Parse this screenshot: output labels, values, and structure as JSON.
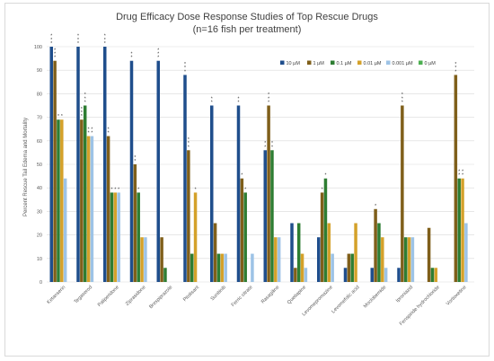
{
  "chart_data": {
    "type": "bar",
    "title": "Drug Efficacy Dose Response Studies of Top Rescue Drugs",
    "subtitle": "(n=16 fish per treatment)",
    "ylabel": "Percent Rescue Tail Edema and Mortality",
    "ylim": [
      0,
      100
    ],
    "yticks": [
      0,
      10,
      20,
      30,
      40,
      50,
      60,
      70,
      80,
      90,
      100
    ],
    "grid": true,
    "legend_position": "top-right",
    "categories": [
      "Ketanserin",
      "Tegaserod",
      "Paliperidone",
      "Ziprasidone",
      "Brexpiprazole",
      "Pitolisant",
      "Sunitinib",
      "Ferric citrate",
      "Rasagiline",
      "Quetiapine",
      "Levomepromazine",
      "Levomefolic acid",
      "Moclobemide",
      "Iproniazid",
      "Fenspiride hydrochloride",
      "Vortioxetine"
    ],
    "series": [
      {
        "name": "10 µM",
        "color": "#1f4e8c",
        "values": [
          100,
          100,
          100,
          94,
          94,
          88,
          75,
          75,
          56,
          25,
          19,
          6,
          6,
          6,
          0,
          0
        ]
      },
      {
        "name": "1 µM",
        "color": "#7f5f1a",
        "values": [
          94,
          69,
          62,
          50,
          19,
          56,
          25,
          44,
          75,
          6,
          38,
          12,
          31,
          75,
          23,
          88
        ]
      },
      {
        "name": "0.1 µM",
        "color": "#2e7d32",
        "values": [
          69,
          75,
          38,
          38,
          6,
          12,
          12,
          38,
          56,
          25,
          44,
          12,
          25,
          19,
          6,
          44
        ]
      },
      {
        "name": "0.01 µM",
        "color": "#d4a12a",
        "values": [
          69,
          62,
          38,
          19,
          0,
          38,
          12,
          0,
          19,
          12,
          25,
          25,
          19,
          19,
          6,
          44
        ]
      },
      {
        "name": "0.001 µM",
        "color": "#9dc3e6",
        "values": [
          44,
          62,
          38,
          19,
          0,
          0,
          12,
          12,
          19,
          6,
          12,
          0,
          6,
          19,
          0,
          25
        ]
      },
      {
        "name": "0 µM",
        "color": "#4caf50",
        "values": [
          0,
          0,
          0,
          0,
          0,
          0,
          0,
          0,
          0,
          0,
          0,
          0,
          0,
          0,
          0,
          0
        ]
      }
    ],
    "significance": [
      [
        3,
        3,
        1,
        1,
        0,
        0
      ],
      [
        3,
        3,
        3,
        2,
        2,
        0
      ],
      [
        3,
        2,
        1,
        1,
        1,
        0
      ],
      [
        2,
        2,
        1,
        0,
        0,
        0
      ],
      [
        3,
        0,
        0,
        0,
        0,
        0
      ],
      [
        3,
        3,
        0,
        1,
        0,
        0
      ],
      [
        2,
        0,
        0,
        0,
        0,
        0
      ],
      [
        2,
        1,
        1,
        0,
        0,
        0
      ],
      [
        2,
        3,
        2,
        0,
        0,
        0
      ],
      [
        0,
        0,
        0,
        0,
        0,
        0
      ],
      [
        0,
        1,
        1,
        0,
        0,
        0
      ],
      [
        0,
        0,
        0,
        0,
        0,
        0
      ],
      [
        0,
        1,
        0,
        0,
        0,
        0
      ],
      [
        0,
        3,
        0,
        0,
        0,
        0
      ],
      [
        0,
        0,
        0,
        0,
        0,
        0
      ],
      [
        0,
        3,
        2,
        2,
        0,
        0
      ]
    ]
  }
}
